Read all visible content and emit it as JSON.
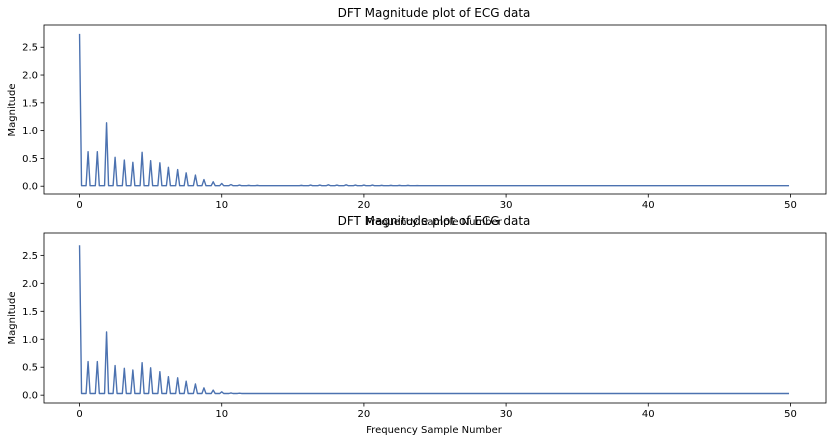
{
  "chart_data": [
    {
      "type": "line",
      "title": "DFT Magnitude plot of ECG data",
      "xlabel": "Frequency Sample Number",
      "ylabel": "Magnitude",
      "xlim": [
        -2.5,
        52.5
      ],
      "ylim": [
        -0.14,
        2.9
      ],
      "x_ticks": [
        0,
        10,
        20,
        30,
        40,
        50
      ],
      "y_ticks": [
        0.0,
        0.5,
        1.0,
        1.5,
        2.0,
        2.5
      ],
      "grid": false,
      "line_color": "#4c72b0",
      "series": [
        {
          "baseline": 0.01,
          "peaks": [
            [
              0.0,
              2.74
            ],
            [
              0.6,
              0.62
            ],
            [
              1.25,
              0.62
            ],
            [
              1.9,
              1.14
            ],
            [
              2.5,
              0.52
            ],
            [
              3.15,
              0.47
            ],
            [
              3.75,
              0.43
            ],
            [
              4.4,
              0.61
            ],
            [
              5.0,
              0.46
            ],
            [
              5.65,
              0.42
            ],
            [
              6.25,
              0.34
            ],
            [
              6.9,
              0.3
            ],
            [
              7.5,
              0.24
            ],
            [
              8.15,
              0.2
            ],
            [
              8.75,
              0.12
            ],
            [
              9.4,
              0.08
            ],
            [
              10.0,
              0.05
            ],
            [
              10.65,
              0.03
            ],
            [
              11.25,
              0.02
            ],
            [
              11.9,
              0.015
            ],
            [
              12.5,
              0.015
            ],
            [
              15.6,
              0.015
            ],
            [
              16.25,
              0.02
            ],
            [
              16.9,
              0.02
            ],
            [
              17.5,
              0.025
            ],
            [
              18.1,
              0.02
            ],
            [
              18.75,
              0.025
            ],
            [
              19.4,
              0.02
            ],
            [
              20.0,
              0.02
            ],
            [
              20.6,
              0.02
            ],
            [
              21.25,
              0.015
            ],
            [
              21.9,
              0.015
            ],
            [
              22.5,
              0.015
            ],
            [
              23.1,
              0.015
            ],
            [
              23.75,
              0.012
            ],
            [
              30.0,
              0.01
            ],
            [
              33.1,
              0.01
            ]
          ]
        }
      ]
    },
    {
      "type": "line",
      "title": "DFT Magnitude plot of ECG data",
      "xlabel": "Frequency Sample Number",
      "ylabel": "Magnitude",
      "xlim": [
        -2.5,
        52.5
      ],
      "ylim": [
        -0.14,
        2.9
      ],
      "x_ticks": [
        0,
        10,
        20,
        30,
        40,
        50
      ],
      "y_ticks": [
        0.0,
        0.5,
        1.0,
        1.5,
        2.0,
        2.5
      ],
      "grid": false,
      "line_color": "#4c72b0",
      "series": [
        {
          "baseline": 0.03,
          "peaks": [
            [
              0.0,
              2.68
            ],
            [
              0.6,
              0.6
            ],
            [
              1.25,
              0.6
            ],
            [
              1.9,
              1.13
            ],
            [
              2.5,
              0.53
            ],
            [
              3.15,
              0.48
            ],
            [
              3.75,
              0.45
            ],
            [
              4.4,
              0.58
            ],
            [
              5.0,
              0.49
            ],
            [
              5.65,
              0.42
            ],
            [
              6.25,
              0.33
            ],
            [
              6.9,
              0.31
            ],
            [
              7.5,
              0.25
            ],
            [
              8.15,
              0.2
            ],
            [
              8.75,
              0.13
            ],
            [
              9.4,
              0.09
            ],
            [
              10.0,
              0.06
            ],
            [
              10.65,
              0.04
            ],
            [
              11.25,
              0.035
            ],
            [
              11.9,
              0.03
            ],
            [
              12.5,
              0.03
            ]
          ]
        }
      ]
    }
  ],
  "line_color": "#4c72b0"
}
